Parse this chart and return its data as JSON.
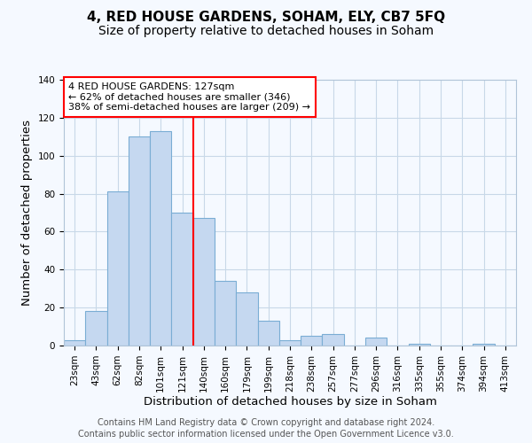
{
  "title": "4, RED HOUSE GARDENS, SOHAM, ELY, CB7 5FQ",
  "subtitle": "Size of property relative to detached houses in Soham",
  "xlabel": "Distribution of detached houses by size in Soham",
  "ylabel": "Number of detached properties",
  "bin_labels": [
    "23sqm",
    "43sqm",
    "62sqm",
    "82sqm",
    "101sqm",
    "121sqm",
    "140sqm",
    "160sqm",
    "179sqm",
    "199sqm",
    "218sqm",
    "238sqm",
    "257sqm",
    "277sqm",
    "296sqm",
    "316sqm",
    "335sqm",
    "355sqm",
    "374sqm",
    "394sqm",
    "413sqm"
  ],
  "bar_values": [
    3,
    18,
    81,
    110,
    113,
    70,
    67,
    34,
    28,
    13,
    3,
    5,
    6,
    0,
    4,
    0,
    1,
    0,
    0,
    1,
    0
  ],
  "bar_color": "#c5d8f0",
  "bar_edge_color": "#7aadd4",
  "vline_x": 5.5,
  "vline_color": "red",
  "ylim": [
    0,
    140
  ],
  "yticks": [
    0,
    20,
    40,
    60,
    80,
    100,
    120,
    140
  ],
  "annotation_text": "4 RED HOUSE GARDENS: 127sqm\n← 62% of detached houses are smaller (346)\n38% of semi-detached houses are larger (209) →",
  "annotation_box_color": "white",
  "annotation_box_edge_color": "red",
  "footer_line1": "Contains HM Land Registry data © Crown copyright and database right 2024.",
  "footer_line2": "Contains public sector information licensed under the Open Government Licence v3.0.",
  "grid_color": "#c8d8e8",
  "background_color": "#f5f9ff",
  "title_fontsize": 11,
  "subtitle_fontsize": 10,
  "axis_label_fontsize": 9.5,
  "tick_fontsize": 7.5,
  "footer_fontsize": 7,
  "annotation_fontsize": 8
}
